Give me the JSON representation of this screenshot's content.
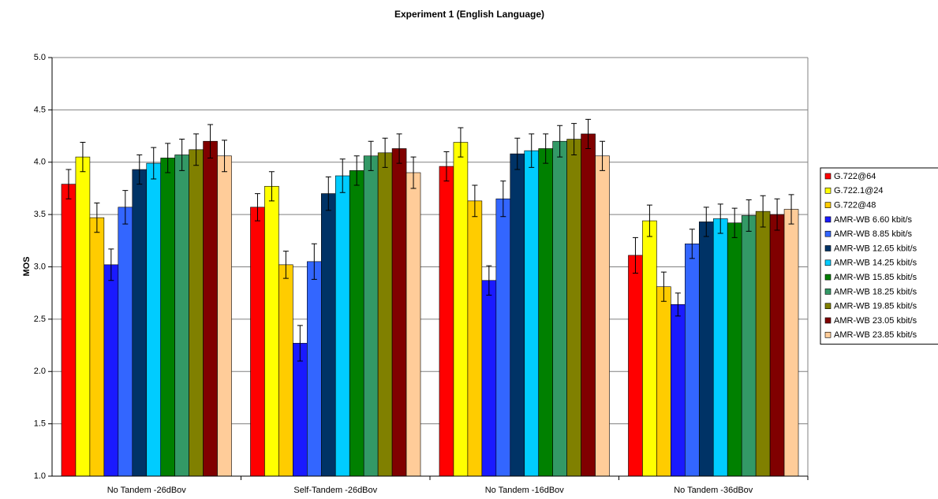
{
  "chart_data": {
    "type": "bar",
    "title": "Experiment 1 (English Language)",
    "y_label": "MOS",
    "categories": [
      "No Tandem -26dBov",
      "Self-Tandem -26dBov",
      "No Tandem -16dBov",
      "No Tandem -36dBov"
    ],
    "ylim": [
      1,
      5
    ],
    "yticks": [
      {
        "value": 1,
        "label": "1.0"
      },
      1.5,
      {
        "value": 2,
        "label": "2.0"
      },
      2.5,
      {
        "value": 3,
        "label": "3.0"
      },
      3.5,
      {
        "value": 4,
        "label": "4.0"
      },
      4.5,
      {
        "value": 5,
        "label": "5.0"
      }
    ],
    "grid": true,
    "legend": "right",
    "series": [
      {
        "name": "G.722@64",
        "color": "#ff0000",
        "values": [
          3.79,
          3.57,
          3.96,
          3.11
        ],
        "errors": [
          0.14,
          0.13,
          0.14,
          0.17
        ]
      },
      {
        "name": "G.722.1@24",
        "color": "#ffff00",
        "values": [
          4.05,
          3.77,
          4.19,
          3.44
        ],
        "errors": [
          0.14,
          0.14,
          0.14,
          0.15
        ]
      },
      {
        "name": "G.722@48",
        "color": "#ffcc00",
        "values": [
          3.47,
          3.02,
          3.63,
          2.81
        ],
        "errors": [
          0.14,
          0.13,
          0.15,
          0.14
        ]
      },
      {
        "name": "AMR-WB 6.60 kbit/s",
        "color": "#1a1aff",
        "values": [
          3.02,
          2.27,
          2.87,
          2.64
        ],
        "errors": [
          0.15,
          0.17,
          0.14,
          0.11
        ]
      },
      {
        "name": "AMR-WB 8.85 kbit/s",
        "color": "#3366ff",
        "values": [
          3.57,
          3.05,
          3.65,
          3.22
        ],
        "errors": [
          0.16,
          0.17,
          0.17,
          0.14
        ]
      },
      {
        "name": "AMR-WB 12.65 kbit/s",
        "color": "#003366",
        "values": [
          3.93,
          3.7,
          4.08,
          3.43
        ],
        "errors": [
          0.14,
          0.16,
          0.15,
          0.14
        ]
      },
      {
        "name": "AMR-WB 14.25 kbit/s",
        "color": "#00ccff",
        "values": [
          3.99,
          3.87,
          4.11,
          3.46
        ],
        "errors": [
          0.15,
          0.16,
          0.16,
          0.14
        ]
      },
      {
        "name": "AMR-WB 15.85 kbit/s",
        "color": "#008000",
        "values": [
          4.04,
          3.92,
          4.13,
          3.42
        ],
        "errors": [
          0.14,
          0.14,
          0.14,
          0.14
        ]
      },
      {
        "name": "AMR-WB 18.25 kbit/s",
        "color": "#339966",
        "values": [
          4.07,
          4.06,
          4.2,
          3.49
        ],
        "errors": [
          0.15,
          0.14,
          0.15,
          0.15
        ]
      },
      {
        "name": "AMR-WB 19.85 kbit/s",
        "color": "#808000",
        "values": [
          4.12,
          4.09,
          4.22,
          3.53
        ],
        "errors": [
          0.15,
          0.14,
          0.15,
          0.15
        ]
      },
      {
        "name": "AMR-WB 23.05 kbit/s",
        "color": "#800000",
        "values": [
          4.2,
          4.13,
          4.27,
          3.5
        ],
        "errors": [
          0.16,
          0.14,
          0.14,
          0.15
        ]
      },
      {
        "name": "AMR-WB 23.85 kbit/s",
        "color": "#ffcc99",
        "values": [
          4.06,
          3.9,
          4.06,
          3.55
        ],
        "errors": [
          0.15,
          0.15,
          0.14,
          0.14
        ]
      }
    ]
  }
}
